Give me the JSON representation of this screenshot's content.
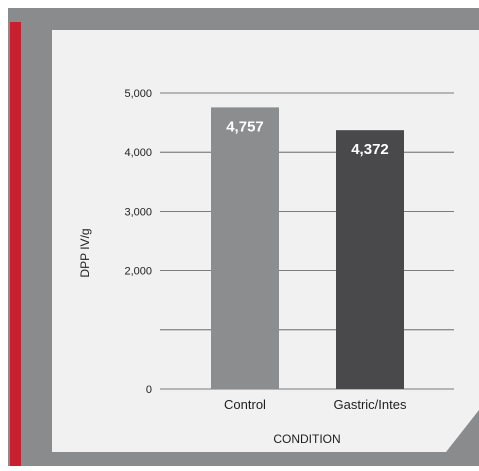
{
  "colors": {
    "frame_gray": "#8a8b8d",
    "frame_inner_gray": "#7a7b7d",
    "accent_red": "#c8202f",
    "panel_bg": "#f1f1f1",
    "gridline": "#555555",
    "bar_control": "#8c8d8f",
    "bar_gastric": "#49494b",
    "text": "#1e1e1e",
    "bar_label": "#ffffff"
  },
  "chart_data": {
    "type": "bar",
    "categories": [
      "Control",
      "Gastric/Intes"
    ],
    "values": [
      4757,
      4372
    ],
    "value_labels": [
      "4,757",
      "4,372"
    ],
    "xlabel": "CONDITION",
    "ylabel": "DPP IV/g",
    "ylim": [
      0,
      5000
    ],
    "y_ticks": [
      {
        "value": 0,
        "label": "0"
      },
      {
        "value": 2000,
        "label": "2,000"
      },
      {
        "value": 3000,
        "label": "3,000"
      },
      {
        "value": 4000,
        "label": "4,000"
      },
      {
        "value": 5000,
        "label": "5,000"
      }
    ],
    "grid": true,
    "legend": "none"
  }
}
